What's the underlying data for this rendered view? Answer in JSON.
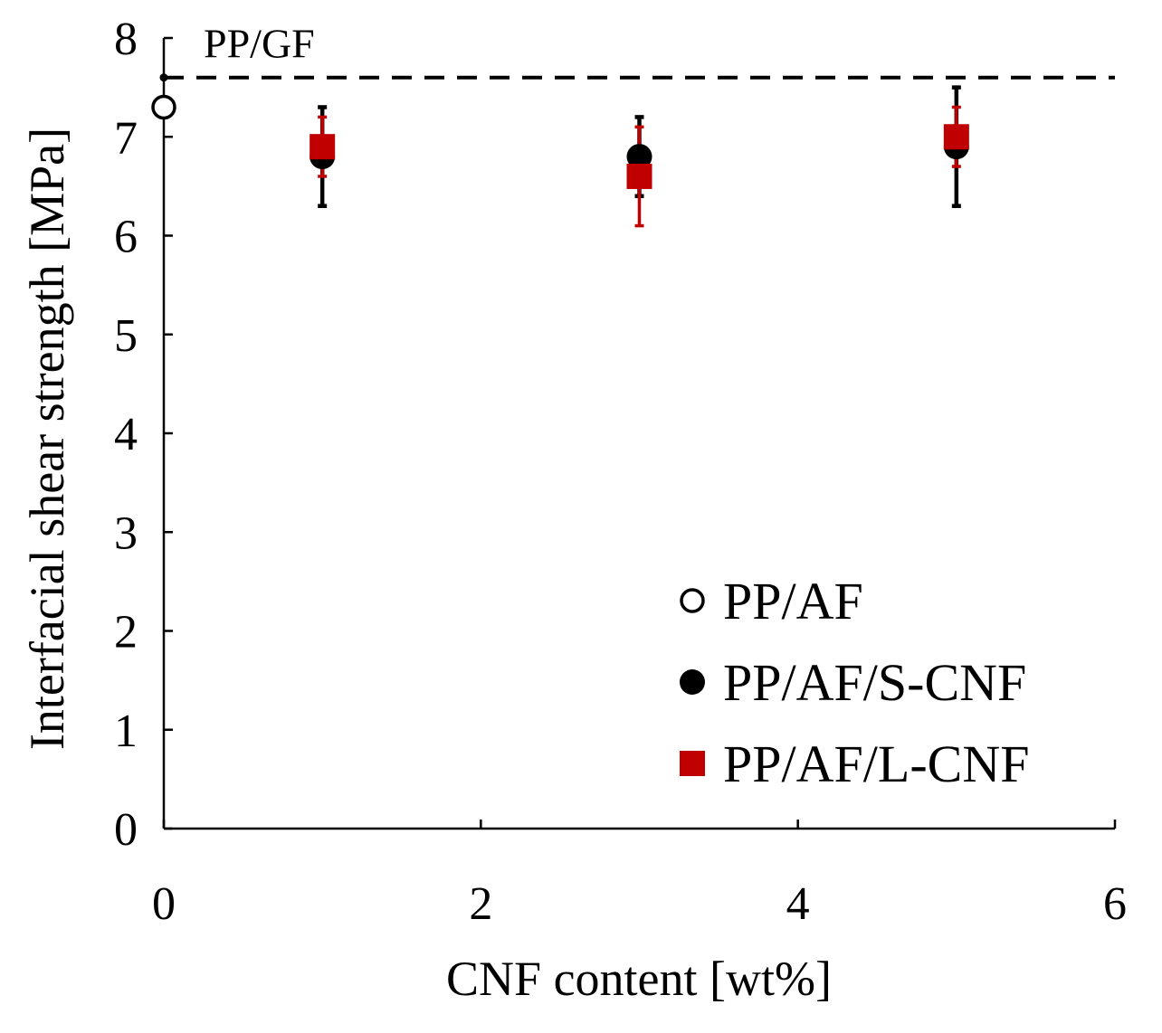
{
  "chart_data": {
    "type": "scatter",
    "title": "",
    "xlabel": "CNF content [wt%]",
    "ylabel": "Interfacial shear strength [MPa]",
    "xlim": [
      0,
      6
    ],
    "ylim": [
      0,
      8
    ],
    "x_ticks": [
      0,
      2,
      4,
      6
    ],
    "y_ticks": [
      0,
      1,
      2,
      3,
      4,
      5,
      6,
      7,
      8
    ],
    "grid": false,
    "legend_position": "bottom-right",
    "reference_line": {
      "label": "PP/GF",
      "y": 7.6,
      "style": "dashed",
      "color": "#000000"
    },
    "series": [
      {
        "name": "PP/AF",
        "marker": "open-circle",
        "color": "#000000",
        "points": [
          {
            "x": 0,
            "y": 7.3,
            "err_low": 7.3,
            "err_high": 7.3
          }
        ]
      },
      {
        "name": "PP/AF/S-CNF",
        "marker": "filled-circle",
        "color": "#000000",
        "points": [
          {
            "x": 1,
            "y": 6.8,
            "err_low": 6.3,
            "err_high": 7.3
          },
          {
            "x": 3,
            "y": 6.8,
            "err_low": 6.4,
            "err_high": 7.2
          },
          {
            "x": 5,
            "y": 6.9,
            "err_low": 6.3,
            "err_high": 7.5
          }
        ]
      },
      {
        "name": "PP/AF/L-CNF",
        "marker": "filled-square",
        "color": "#c00000",
        "points": [
          {
            "x": 1,
            "y": 6.9,
            "err_low": 6.6,
            "err_high": 7.2
          },
          {
            "x": 3,
            "y": 6.6,
            "err_low": 6.1,
            "err_high": 7.1
          },
          {
            "x": 5,
            "y": 7.0,
            "err_low": 6.7,
            "err_high": 7.3
          }
        ]
      }
    ]
  }
}
